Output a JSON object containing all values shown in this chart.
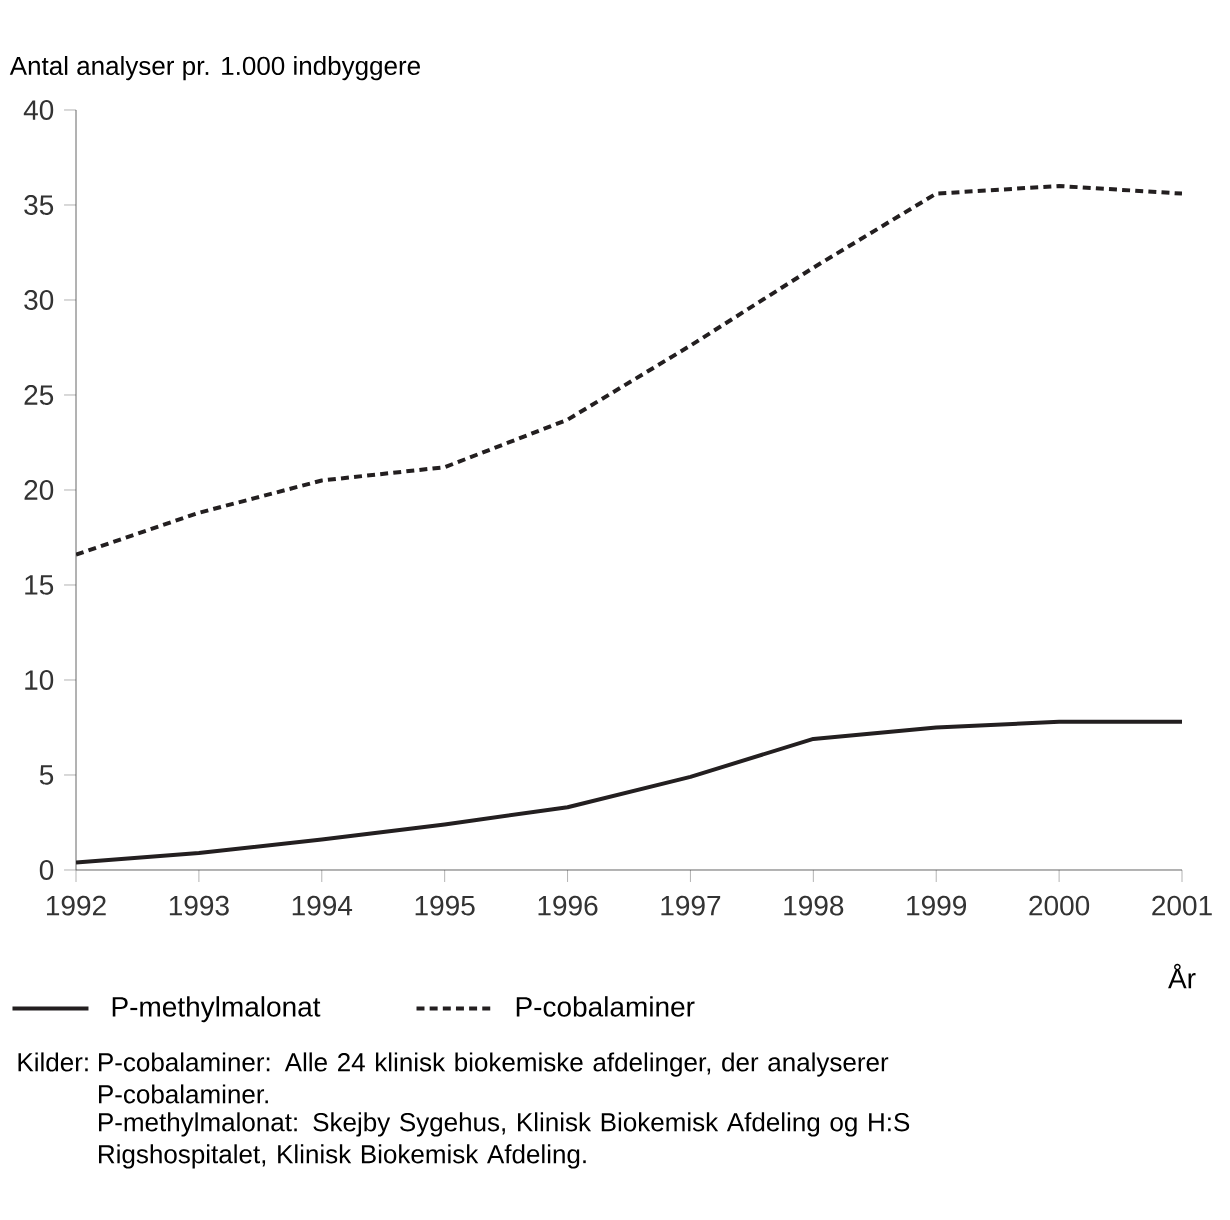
{
  "chart_data": {
    "type": "line",
    "ylabel": "Antal analyser pr. 1.000 indbyggere",
    "xlabel": "År",
    "x": [
      1992,
      1993,
      1994,
      1995,
      1996,
      1997,
      1998,
      1999,
      2000,
      2001
    ],
    "series": [
      {
        "name": "P-methylmalonat",
        "color": "#231f20",
        "line_style": "solid",
        "values": [
          0.4,
          0.9,
          1.6,
          2.4,
          3.3,
          4.9,
          6.9,
          7.5,
          7.8,
          7.8
        ]
      },
      {
        "name": "P-cobalaminer",
        "color": "#231f20",
        "line_style": "dashed",
        "values": [
          16.6,
          18.8,
          20.5,
          21.2,
          23.7,
          27.6,
          31.7,
          35.6,
          36.0,
          35.6
        ]
      }
    ],
    "xlim": [
      1992,
      2001
    ],
    "xticks": [
      1992,
      1993,
      1994,
      1995,
      1996,
      1997,
      1998,
      1999,
      2000,
      2001
    ],
    "ylim": [
      0,
      40
    ],
    "yticks": [
      0,
      5,
      10,
      15,
      20,
      25,
      30,
      35,
      40
    ],
    "grid": false,
    "legend": "bottom",
    "marker": "none",
    "annotations": [
      "Kilder:",
      "P-cobalaminer: Alle 24 klinisk biokemiske afdelinger, der analyserer P-cobalaminer.",
      "P-methylmalonat: Skejby Sygehus, Klinisk Biokemisk Afdeling og H:S Rigshospitalet, Klinisk Biokemisk Afdeling."
    ]
  }
}
